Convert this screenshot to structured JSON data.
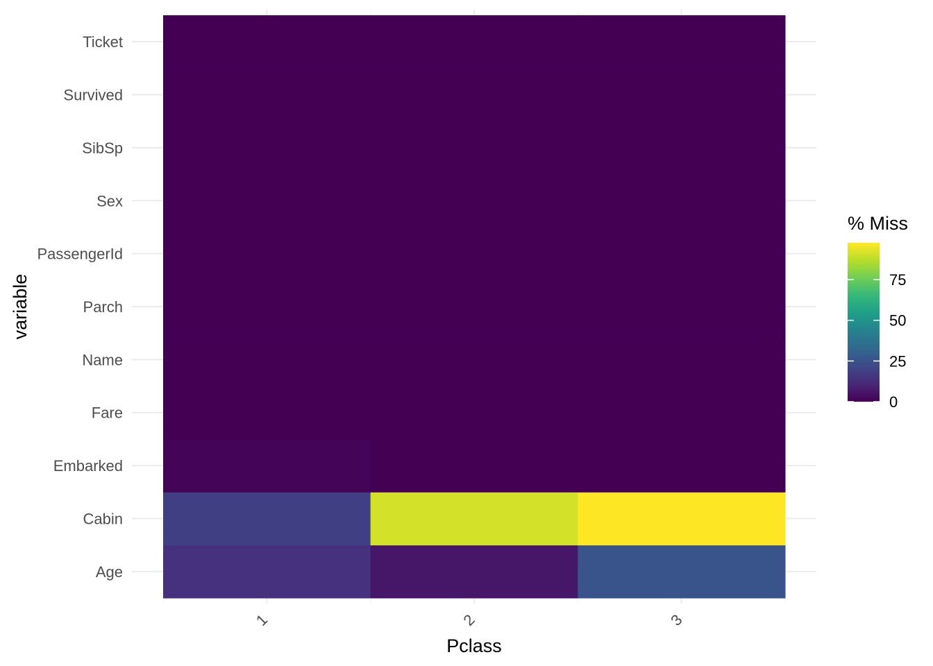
{
  "chart_data": {
    "type": "heatmap",
    "title": "",
    "xlabel": "Pclass",
    "ylabel": "variable",
    "x_categories": [
      "1",
      "2",
      "3"
    ],
    "y_categories": [
      "Age",
      "Cabin",
      "Embarked",
      "Fare",
      "Name",
      "Parch",
      "PassengerId",
      "Sex",
      "SibSp",
      "Survived",
      "Ticket"
    ],
    "values": [
      [
        13.9,
        6.0,
        25.7
      ],
      [
        18.5,
        91.3,
        97.6
      ],
      [
        0.9,
        0,
        0
      ],
      [
        0,
        0,
        0
      ],
      [
        0,
        0,
        0
      ],
      [
        0,
        0,
        0
      ],
      [
        0,
        0,
        0
      ],
      [
        0,
        0,
        0
      ],
      [
        0,
        0,
        0
      ],
      [
        0,
        0,
        0
      ],
      [
        0,
        0,
        0
      ]
    ],
    "legend": {
      "title": "% Miss",
      "ticks": [
        0,
        25,
        50,
        75
      ],
      "range": [
        0,
        97.6
      ],
      "colormap": "viridis"
    },
    "grid": true,
    "legend_position": "right"
  },
  "colors": {
    "viridis": [
      "#440154",
      "#482878",
      "#3e4989",
      "#31688e",
      "#26828e",
      "#1f9e89",
      "#35b779",
      "#6ece58",
      "#b5de2b",
      "#fde725"
    ],
    "grid": "#ebebeb",
    "tick_text": "#4d4d4d"
  }
}
